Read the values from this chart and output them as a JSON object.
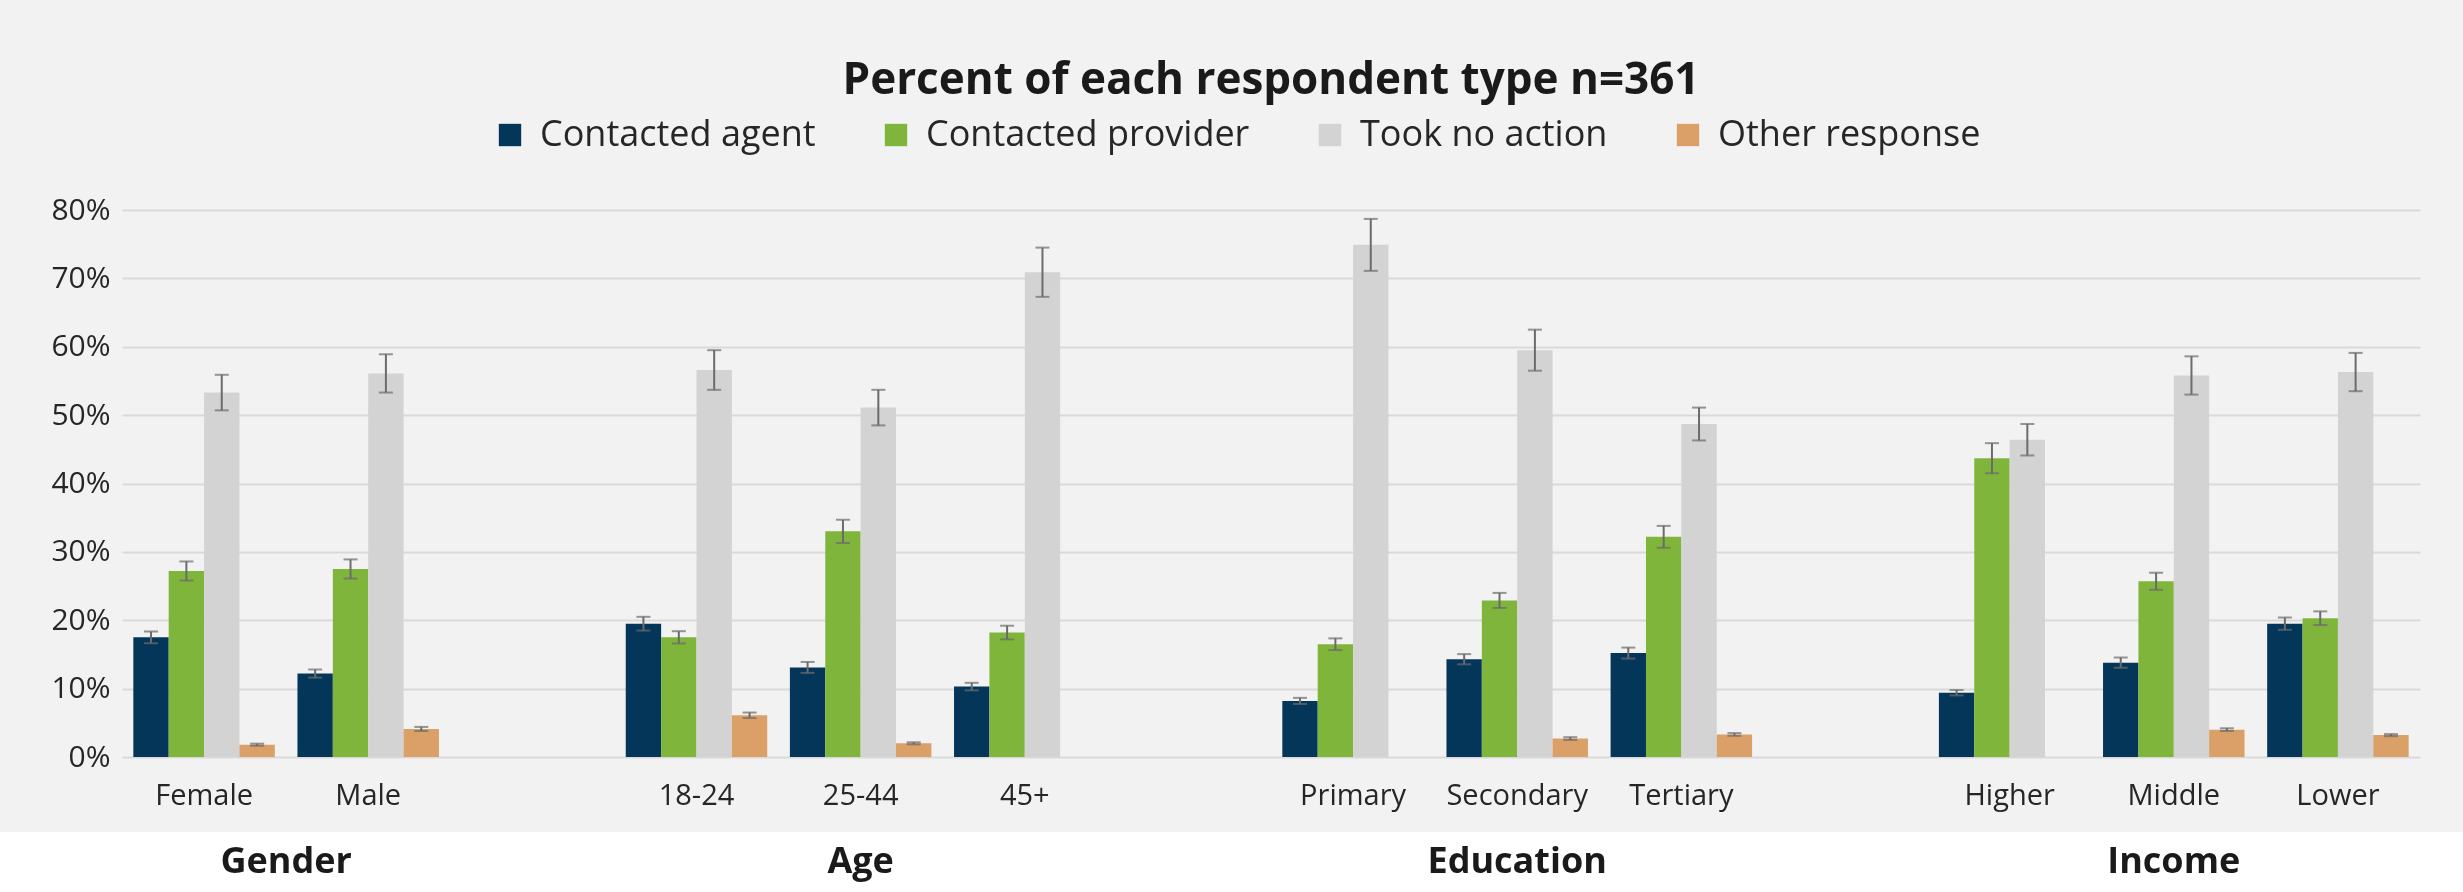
{
  "chart_data": {
    "type": "bar",
    "title": "Percent of each respondent type n=361",
    "categories": [
      "Female",
      "Male",
      null,
      "18-24",
      "25-44",
      "45+",
      null,
      "Primary",
      "Secondary",
      "Tertiary",
      null,
      "Higher",
      "Middle",
      "Lower"
    ],
    "series": [
      {
        "name": "Contacted agent",
        "color": "#04365a",
        "values": [
          17.5,
          12.2,
          null,
          19.5,
          13.1,
          10.3,
          null,
          8.2,
          14.3,
          15.2,
          null,
          9.4,
          13.8,
          19.5
        ],
        "errors": [
          0.85,
          0.6,
          null,
          1.0,
          0.8,
          0.55,
          null,
          0.45,
          0.75,
          0.8,
          null,
          0.4,
          0.75,
          0.9
        ]
      },
      {
        "name": "Contacted provider",
        "color": "#80b53c",
        "values": [
          27.2,
          27.5,
          null,
          17.5,
          33.0,
          18.2,
          null,
          16.5,
          22.9,
          32.2,
          null,
          43.7,
          25.7,
          20.3
        ],
        "errors": [
          1.4,
          1.4,
          null,
          0.9,
          1.7,
          1.0,
          null,
          0.85,
          1.1,
          1.6,
          null,
          2.2,
          1.25,
          1.0
        ]
      },
      {
        "name": "Took no action",
        "color": "#d3d3d3",
        "values": [
          53.3,
          56.1,
          null,
          56.6,
          51.1,
          70.9,
          null,
          74.9,
          59.5,
          48.7,
          null,
          46.4,
          55.8,
          56.3
        ],
        "errors": [
          2.6,
          2.8,
          null,
          2.9,
          2.6,
          3.6,
          null,
          3.8,
          3.0,
          2.4,
          null,
          2.3,
          2.8,
          2.8
        ]
      },
      {
        "name": "Other response",
        "color": "#daa067",
        "values": [
          1.8,
          4.1,
          null,
          6.1,
          2.0,
          null,
          null,
          null,
          2.7,
          3.3,
          null,
          null,
          4.0,
          3.2
        ],
        "errors": [
          0.15,
          0.3,
          null,
          0.4,
          0.15,
          null,
          null,
          null,
          0.2,
          0.2,
          null,
          null,
          0.2,
          0.15
        ]
      }
    ],
    "ylim": [
      0,
      80
    ],
    "yticks": [
      {
        "value": 0,
        "label": "0%"
      },
      {
        "value": 10,
        "label": "10%"
      },
      {
        "value": 20,
        "label": "20%"
      },
      {
        "value": 30,
        "label": "30%"
      },
      {
        "value": 40,
        "label": "40%"
      },
      {
        "value": 50,
        "label": "50%"
      },
      {
        "value": 60,
        "label": "60%"
      },
      {
        "value": 70,
        "label": "70%"
      },
      {
        "value": 80,
        "label": "80%"
      }
    ],
    "grid": "y",
    "legend": "top",
    "annotations": [
      "Gender",
      "Age",
      "Education",
      "Income"
    ]
  }
}
